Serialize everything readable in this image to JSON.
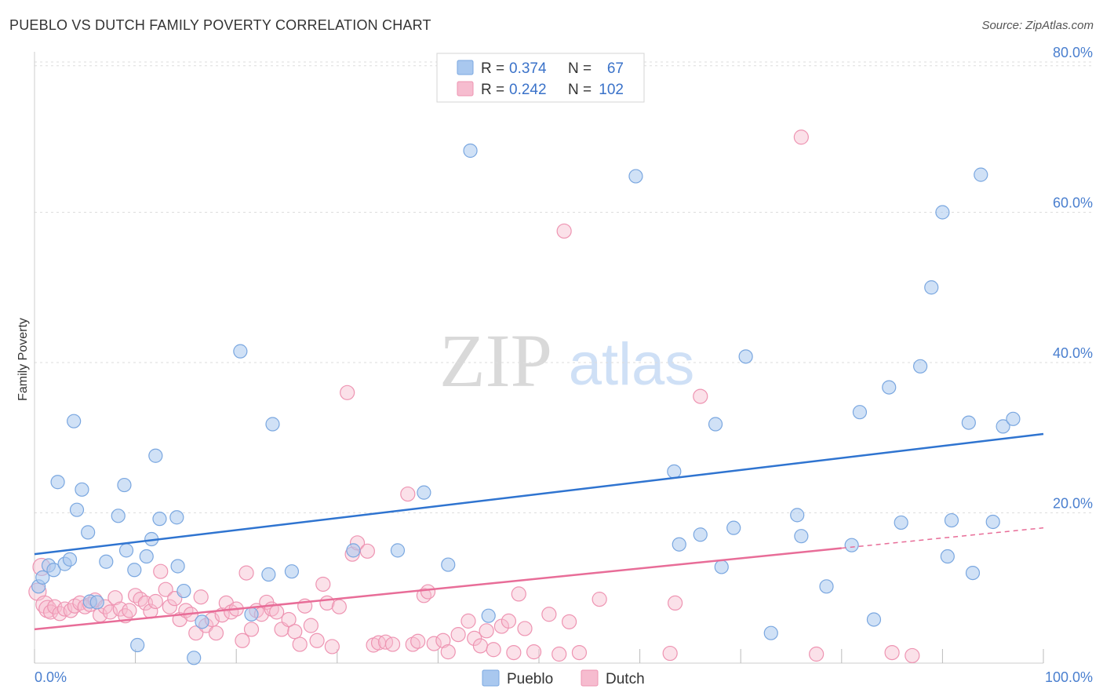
{
  "header": {
    "title": "PUEBLO VS DUTCH FAMILY POVERTY CORRELATION CHART",
    "source": "Source: ZipAtlas.com"
  },
  "watermark": {
    "zip": "ZIP",
    "atlas": "atlas"
  },
  "colors": {
    "pueblo_fill": "#a9c8ef",
    "pueblo_stroke": "#7aa7e0",
    "pueblo_line": "#2f74d0",
    "dutch_fill": "#f6bccf",
    "dutch_stroke": "#ee94b2",
    "dutch_line": "#e86d98",
    "axis_text": "#4a7fcf",
    "grid": "#dddddd"
  },
  "legend": {
    "rows": [
      {
        "r_label": "R =",
        "r_value": "0.374",
        "n_label": "N =",
        "n_value": "67"
      },
      {
        "r_label": "R =",
        "r_value": "0.242",
        "n_label": "N =",
        "n_value": "102"
      }
    ]
  },
  "bottom_legend": {
    "pueblo": "Pueblo",
    "dutch": "Dutch"
  },
  "chart_data": {
    "type": "scatter",
    "ylabel": "Family Poverty",
    "xlabel": "",
    "xlim": [
      0,
      100
    ],
    "ylim": [
      0,
      80
    ],
    "x_tick_labels": [
      "0.0%",
      "100.0%"
    ],
    "y_ticks": [
      20,
      40,
      60,
      80
    ],
    "y_tick_labels": [
      "20.0%",
      "40.0%",
      "60.0%",
      "80.0%"
    ],
    "grid": true,
    "series": [
      {
        "name": "Pueblo",
        "trend": {
          "x": [
            0,
            100
          ],
          "y": [
            14.5,
            30.5
          ]
        },
        "points": [
          [
            0.4,
            10.2
          ],
          [
            0.8,
            11.4
          ],
          [
            1.4,
            13.0
          ],
          [
            1.9,
            12.4
          ],
          [
            2.3,
            24.1
          ],
          [
            3.0,
            13.2
          ],
          [
            3.5,
            13.8
          ],
          [
            3.9,
            32.2
          ],
          [
            4.2,
            20.4
          ],
          [
            4.7,
            23.1
          ],
          [
            5.3,
            17.4
          ],
          [
            5.5,
            8.2
          ],
          [
            6.2,
            8.1
          ],
          [
            7.1,
            13.5
          ],
          [
            8.3,
            19.6
          ],
          [
            8.9,
            23.7
          ],
          [
            9.1,
            15.0
          ],
          [
            9.9,
            12.4
          ],
          [
            10.2,
            2.4
          ],
          [
            11.1,
            14.2
          ],
          [
            11.6,
            16.5
          ],
          [
            12.0,
            27.6
          ],
          [
            12.4,
            19.2
          ],
          [
            14.1,
            19.4
          ],
          [
            14.2,
            12.9
          ],
          [
            14.8,
            9.6
          ],
          [
            15.8,
            0.7
          ],
          [
            16.6,
            5.5
          ],
          [
            20.4,
            41.5
          ],
          [
            21.5,
            6.5
          ],
          [
            23.2,
            11.8
          ],
          [
            23.6,
            31.8
          ],
          [
            25.5,
            12.2
          ],
          [
            31.6,
            15.0
          ],
          [
            36.0,
            15.0
          ],
          [
            38.6,
            22.7
          ],
          [
            41.0,
            13.1
          ],
          [
            43.2,
            68.2
          ],
          [
            45.0,
            6.3
          ],
          [
            59.6,
            64.8
          ],
          [
            63.4,
            25.5
          ],
          [
            63.9,
            15.8
          ],
          [
            66.0,
            17.1
          ],
          [
            67.5,
            31.8
          ],
          [
            68.1,
            12.8
          ],
          [
            69.3,
            18.0
          ],
          [
            70.5,
            40.8
          ],
          [
            73.0,
            4.0
          ],
          [
            75.6,
            19.7
          ],
          [
            76.0,
            16.9
          ],
          [
            78.5,
            10.2
          ],
          [
            81.0,
            15.7
          ],
          [
            81.8,
            33.4
          ],
          [
            83.2,
            5.8
          ],
          [
            84.7,
            36.7
          ],
          [
            85.9,
            18.7
          ],
          [
            87.8,
            39.5
          ],
          [
            88.9,
            50.0
          ],
          [
            90.0,
            60.0
          ],
          [
            90.5,
            14.2
          ],
          [
            90.9,
            19.0
          ],
          [
            92.6,
            32.0
          ],
          [
            93.0,
            12.0
          ],
          [
            93.8,
            65.0
          ],
          [
            95.0,
            18.8
          ],
          [
            96.0,
            31.5
          ],
          [
            97.0,
            32.5
          ]
        ]
      },
      {
        "name": "Dutch",
        "trend": {
          "x": [
            0,
            100
          ],
          "y": [
            4.5,
            18.0
          ],
          "solid_until": 80
        },
        "points": [
          [
            0.3,
            9.5
          ],
          [
            0.7,
            12.8
          ],
          [
            1.0,
            7.8
          ],
          [
            1.3,
            7.2
          ],
          [
            1.6,
            6.8
          ],
          [
            2.0,
            7.5
          ],
          [
            2.5,
            6.6
          ],
          [
            3.0,
            7.2
          ],
          [
            3.6,
            7.0
          ],
          [
            4.0,
            7.6
          ],
          [
            4.5,
            8.0
          ],
          [
            5.0,
            7.5
          ],
          [
            5.5,
            7.8
          ],
          [
            6.0,
            8.4
          ],
          [
            6.5,
            6.4
          ],
          [
            7.0,
            7.5
          ],
          [
            7.5,
            6.8
          ],
          [
            8.0,
            8.7
          ],
          [
            8.5,
            7.2
          ],
          [
            9.0,
            6.3
          ],
          [
            9.4,
            7.0
          ],
          [
            10.0,
            9.0
          ],
          [
            10.5,
            8.5
          ],
          [
            11.0,
            8.0
          ],
          [
            11.5,
            6.9
          ],
          [
            12.0,
            8.2
          ],
          [
            12.5,
            12.2
          ],
          [
            13.0,
            9.8
          ],
          [
            13.4,
            7.5
          ],
          [
            13.9,
            8.6
          ],
          [
            14.4,
            5.8
          ],
          [
            15.0,
            7.0
          ],
          [
            15.5,
            6.5
          ],
          [
            16.0,
            4.0
          ],
          [
            16.5,
            8.8
          ],
          [
            17.0,
            5.0
          ],
          [
            17.6,
            5.8
          ],
          [
            18.0,
            4.0
          ],
          [
            18.6,
            6.4
          ],
          [
            19.0,
            8.0
          ],
          [
            19.5,
            6.8
          ],
          [
            20.0,
            7.2
          ],
          [
            20.6,
            3.0
          ],
          [
            21.0,
            12.0
          ],
          [
            21.5,
            4.5
          ],
          [
            22.0,
            7.0
          ],
          [
            22.5,
            6.5
          ],
          [
            23.0,
            8.1
          ],
          [
            23.5,
            7.2
          ],
          [
            24.0,
            6.8
          ],
          [
            24.5,
            4.5
          ],
          [
            25.2,
            5.8
          ],
          [
            25.8,
            4.2
          ],
          [
            26.3,
            2.5
          ],
          [
            26.8,
            7.6
          ],
          [
            27.4,
            5.0
          ],
          [
            28.0,
            3.0
          ],
          [
            28.6,
            10.5
          ],
          [
            29.0,
            8.0
          ],
          [
            29.5,
            2.2
          ],
          [
            30.2,
            7.5
          ],
          [
            31.0,
            36.0
          ],
          [
            31.5,
            14.5
          ],
          [
            32.0,
            16.0
          ],
          [
            33.0,
            14.9
          ],
          [
            33.6,
            2.4
          ],
          [
            34.1,
            2.7
          ],
          [
            34.8,
            2.8
          ],
          [
            35.5,
            2.5
          ],
          [
            37.0,
            22.5
          ],
          [
            37.5,
            2.5
          ],
          [
            38.0,
            2.9
          ],
          [
            38.6,
            9.0
          ],
          [
            39.0,
            9.5
          ],
          [
            39.6,
            2.6
          ],
          [
            40.5,
            3.0
          ],
          [
            41.0,
            1.5
          ],
          [
            42.0,
            3.8
          ],
          [
            43.0,
            5.6
          ],
          [
            43.6,
            3.3
          ],
          [
            44.2,
            2.3
          ],
          [
            44.8,
            4.3
          ],
          [
            45.5,
            1.8
          ],
          [
            46.3,
            4.9
          ],
          [
            47.0,
            5.6
          ],
          [
            47.5,
            1.4
          ],
          [
            48.0,
            9.2
          ],
          [
            48.6,
            4.6
          ],
          [
            49.5,
            1.5
          ],
          [
            51.0,
            6.5
          ],
          [
            52.0,
            1.2
          ],
          [
            52.5,
            57.5
          ],
          [
            53.0,
            5.5
          ],
          [
            54.0,
            1.4
          ],
          [
            56.0,
            8.5
          ],
          [
            63.0,
            1.3
          ],
          [
            63.5,
            8.0
          ],
          [
            66.0,
            35.5
          ],
          [
            76.0,
            70.0
          ],
          [
            77.5,
            1.2
          ],
          [
            85.0,
            1.4
          ],
          [
            87.0,
            1.0
          ]
        ]
      }
    ]
  }
}
